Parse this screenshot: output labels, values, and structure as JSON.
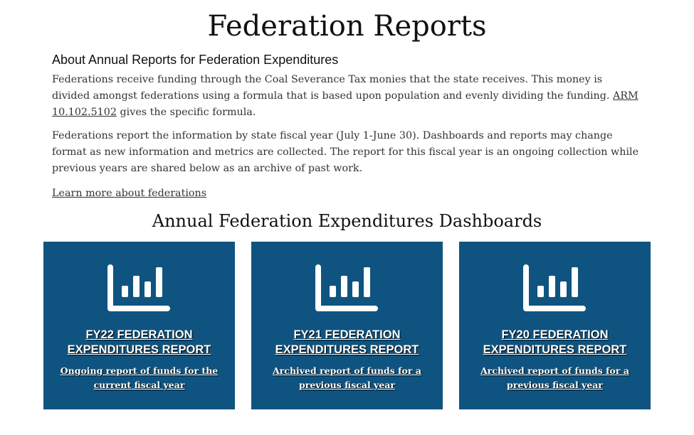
{
  "page_title": "Federation Reports",
  "about": {
    "heading": "About Annual Reports for Federation Expenditures",
    "p1_before": "Federations receive funding through the Coal Severance Tax monies that the state receives. This money is divided amongst federations using a formula that is based upon population and evenly dividing the funding. ",
    "p1_link": "ARM 10.102.5102",
    "p1_after": " gives the specific formula.",
    "p2": "Federations report the information by state fiscal year (July 1-June 30). Dashboards and reports may change format as new information and metrics are collected. The report for this fiscal year is an ongoing collection while previous years are shared below as an archive of past work.",
    "learn_more": "Learn more about federations"
  },
  "dashboards": {
    "title": "Annual Federation Expenditures Dashboards",
    "cards": [
      {
        "title": "FY22 FEDERATION EXPENDITURES REPORT",
        "desc": "Ongoing report of funds for the current fiscal year",
        "icon": "bar-chart-icon"
      },
      {
        "title": "FY21 FEDERATION EXPENDITURES REPORT",
        "desc": "Archived report of funds for a previous fiscal year",
        "icon": "bar-chart-icon"
      },
      {
        "title": "FY20 FEDERATION EXPENDITURES REPORT",
        "desc": "Archived report of funds for a previous fiscal year",
        "icon": "bar-chart-icon"
      }
    ]
  },
  "colors": {
    "card_bg": "#0f5480"
  }
}
